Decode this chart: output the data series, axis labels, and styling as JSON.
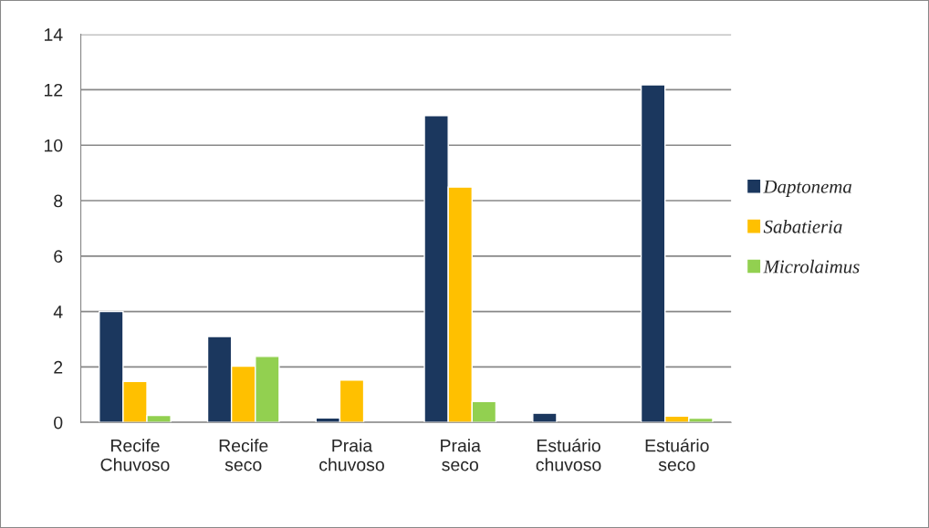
{
  "chart_data": {
    "type": "bar",
    "categories": [
      "Recife\nChuvoso",
      "Recife\nseco",
      "Praia\nchuvoso",
      "Praia\nseco",
      "Estuário\nchuvoso",
      "Estuário\nseco"
    ],
    "series": [
      {
        "name": "Daptonema",
        "color": "#1b375e",
        "values": [
          4.0,
          3.1,
          0.16,
          11.07,
          0.33,
          12.18
        ]
      },
      {
        "name": "Sabatieria",
        "color": "#ffc000",
        "values": [
          1.48,
          2.03,
          1.53,
          8.49,
          null,
          0.23
        ]
      },
      {
        "name": "Microlaimus",
        "color": "#92d050",
        "values": [
          0.25,
          2.38,
          null,
          0.75,
          null,
          0.15
        ]
      }
    ],
    "ylim": [
      0,
      14
    ],
    "yticks": [
      0,
      2,
      4,
      6,
      8,
      10,
      12,
      14
    ],
    "grid": "y",
    "legend": "right"
  }
}
